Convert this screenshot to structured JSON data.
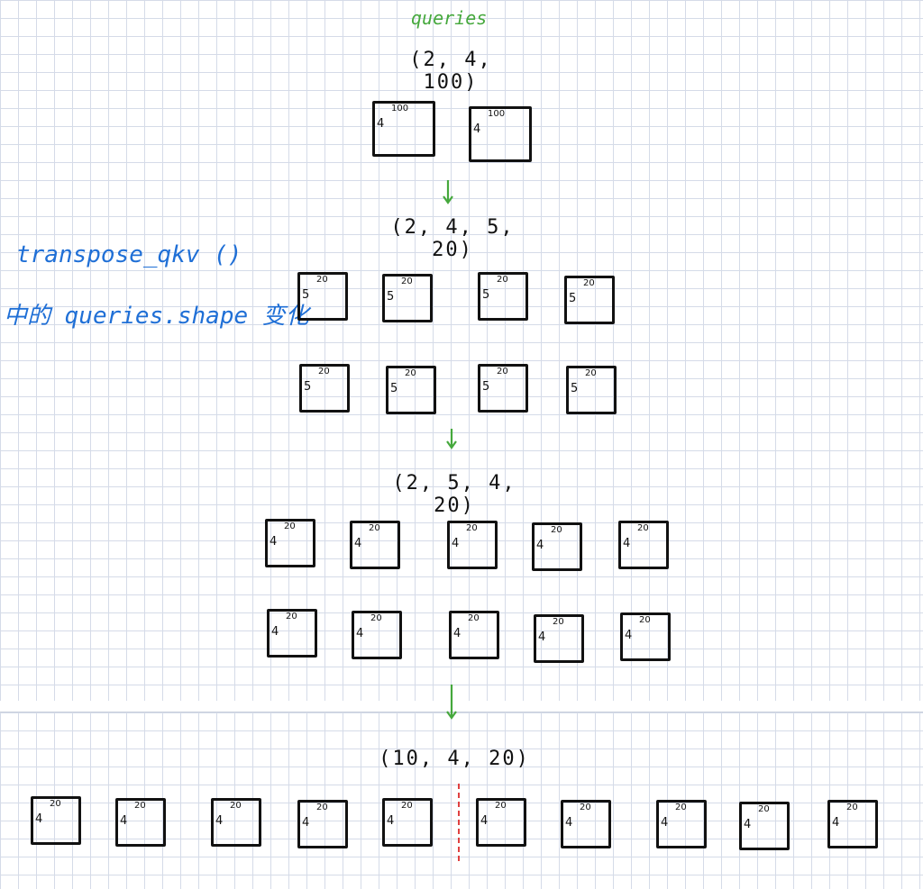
{
  "top_label": "queries",
  "shapes": {
    "s1": "(2, 4, 100)",
    "s2": "(2, 4, 5, 20)",
    "s3": "(2, 5, 4, 20)",
    "s4": "(10, 4, 20)"
  },
  "note": {
    "line1": "transpose_qkv ()",
    "line2": "中的 queries.shape 变化"
  },
  "box_labels": {
    "row1_top": "100",
    "row1_left": "4",
    "row2_top": "20",
    "row2_left": "5",
    "row3_top": "20",
    "row3_left": "4",
    "row4_top": "20",
    "row4_left": "4"
  },
  "colors": {
    "arrow": "#45a83c",
    "note": "#1f6fd6",
    "split": "#e04040"
  }
}
